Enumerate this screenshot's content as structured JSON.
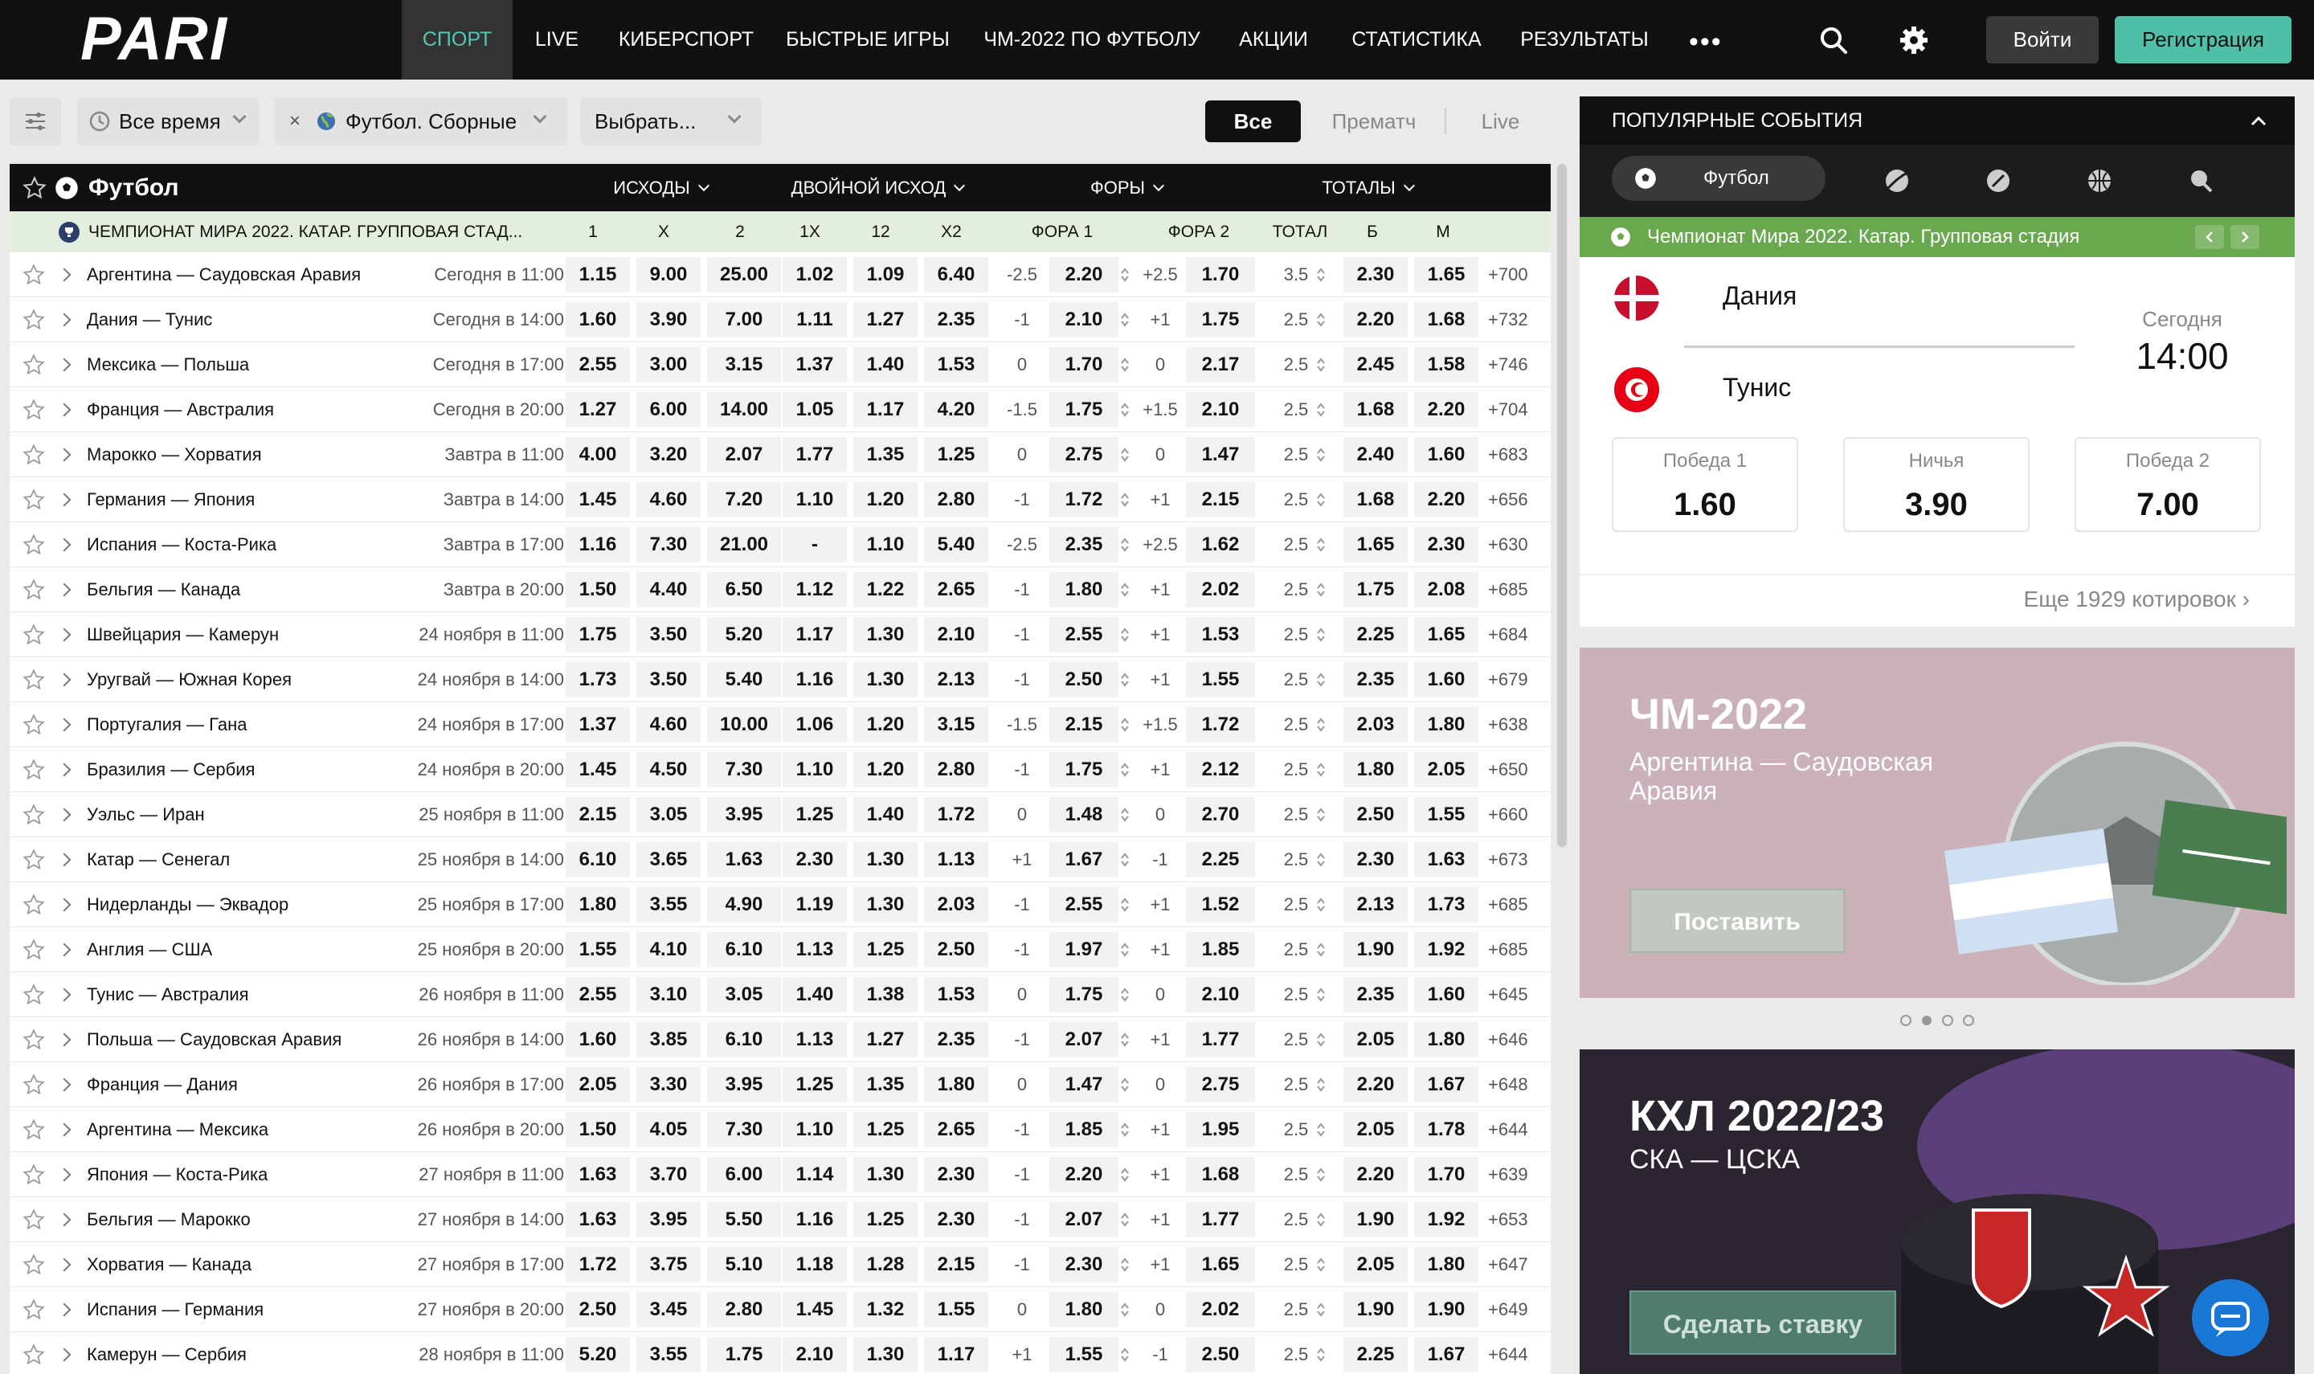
{
  "header": {
    "logo": "PARI",
    "nav": [
      "СПОРТ",
      "LIVE",
      "КИБЕРСПОРТ",
      "БЫСТРЫЕ ИГРЫ",
      "ЧМ-2022 ПО ФУТБОЛУ",
      "АКЦИИ",
      "СТАТИСТИКА",
      "РЕЗУЛЬТАТЫ"
    ],
    "more": "•••",
    "login": "Войти",
    "register": "Регистрация",
    "accent": "#54c7b6"
  },
  "filters": {
    "time": "Все время",
    "category": "Футбол. Сборные",
    "select": "Выбрать...",
    "seg_all": "Все",
    "seg_pre": "Прематч",
    "seg_live": "Live"
  },
  "table": {
    "sport": "Футбол",
    "groups": [
      "ИСХОДЫ",
      "ДВОЙНОЙ ИСХОД",
      "ФОРЫ",
      "ТОТАЛЫ"
    ],
    "league": "ЧЕМПИОНАТ МИРА 2022. КАТАР. ГРУППОВАЯ СТАД...",
    "cols": [
      "1",
      "X",
      "2",
      "1X",
      "12",
      "X2",
      "ФОРА 1",
      "ФОРА 2",
      "ТОТАЛ",
      "Б",
      "М"
    ],
    "rows": [
      [
        "Аргентина — Саудовская Аравия",
        "Сегодня в 11:00",
        "1.15",
        "9.00",
        "25.00",
        "1.02",
        "1.09",
        "6.40",
        "-2.5",
        "2.20",
        "+2.5",
        "1.70",
        "3.5",
        "2.30",
        "1.65",
        "+700"
      ],
      [
        "Дания — Тунис",
        "Сегодня в 14:00",
        "1.60",
        "3.90",
        "7.00",
        "1.11",
        "1.27",
        "2.35",
        "-1",
        "2.10",
        "+1",
        "1.75",
        "2.5",
        "2.20",
        "1.68",
        "+732"
      ],
      [
        "Мексика — Польша",
        "Сегодня в 17:00",
        "2.55",
        "3.00",
        "3.15",
        "1.37",
        "1.40",
        "1.53",
        "0",
        "1.70",
        "0",
        "2.17",
        "2.5",
        "2.45",
        "1.58",
        "+746"
      ],
      [
        "Франция — Австралия",
        "Сегодня в 20:00",
        "1.27",
        "6.00",
        "14.00",
        "1.05",
        "1.17",
        "4.20",
        "-1.5",
        "1.75",
        "+1.5",
        "2.10",
        "2.5",
        "1.68",
        "2.20",
        "+704"
      ],
      [
        "Марокко — Хорватия",
        "Завтра в 11:00",
        "4.00",
        "3.20",
        "2.07",
        "1.77",
        "1.35",
        "1.25",
        "0",
        "2.75",
        "0",
        "1.47",
        "2.5",
        "2.40",
        "1.60",
        "+683"
      ],
      [
        "Германия — Япония",
        "Завтра в 14:00",
        "1.45",
        "4.60",
        "7.20",
        "1.10",
        "1.20",
        "2.80",
        "-1",
        "1.72",
        "+1",
        "2.15",
        "2.5",
        "1.68",
        "2.20",
        "+656"
      ],
      [
        "Испания — Коста-Рика",
        "Завтра в 17:00",
        "1.16",
        "7.30",
        "21.00",
        "-",
        "1.10",
        "5.40",
        "-2.5",
        "2.35",
        "+2.5",
        "1.62",
        "2.5",
        "1.65",
        "2.30",
        "+630"
      ],
      [
        "Бельгия — Канада",
        "Завтра в 20:00",
        "1.50",
        "4.40",
        "6.50",
        "1.12",
        "1.22",
        "2.65",
        "-1",
        "1.80",
        "+1",
        "2.02",
        "2.5",
        "1.75",
        "2.08",
        "+685"
      ],
      [
        "Швейцария — Камерун",
        "24 ноября в 11:00",
        "1.75",
        "3.50",
        "5.20",
        "1.17",
        "1.30",
        "2.10",
        "-1",
        "2.55",
        "+1",
        "1.53",
        "2.5",
        "2.25",
        "1.65",
        "+684"
      ],
      [
        "Уругвай — Южная Корея",
        "24 ноября в 14:00",
        "1.73",
        "3.50",
        "5.40",
        "1.16",
        "1.30",
        "2.13",
        "-1",
        "2.50",
        "+1",
        "1.55",
        "2.5",
        "2.35",
        "1.60",
        "+679"
      ],
      [
        "Португалия — Гана",
        "24 ноября в 17:00",
        "1.37",
        "4.60",
        "10.00",
        "1.06",
        "1.20",
        "3.15",
        "-1.5",
        "2.15",
        "+1.5",
        "1.72",
        "2.5",
        "2.03",
        "1.80",
        "+638"
      ],
      [
        "Бразилия — Сербия",
        "24 ноября в 20:00",
        "1.45",
        "4.50",
        "7.30",
        "1.10",
        "1.20",
        "2.80",
        "-1",
        "1.75",
        "+1",
        "2.12",
        "2.5",
        "1.80",
        "2.05",
        "+650"
      ],
      [
        "Уэльс — Иран",
        "25 ноября в 11:00",
        "2.15",
        "3.05",
        "3.95",
        "1.25",
        "1.40",
        "1.72",
        "0",
        "1.48",
        "0",
        "2.70",
        "2.5",
        "2.50",
        "1.55",
        "+660"
      ],
      [
        "Катар — Сенегал",
        "25 ноября в 14:00",
        "6.10",
        "3.65",
        "1.63",
        "2.30",
        "1.30",
        "1.13",
        "+1",
        "1.67",
        "-1",
        "2.25",
        "2.5",
        "2.30",
        "1.63",
        "+673"
      ],
      [
        "Нидерланды — Эквадор",
        "25 ноября в 17:00",
        "1.80",
        "3.55",
        "4.90",
        "1.19",
        "1.30",
        "2.03",
        "-1",
        "2.55",
        "+1",
        "1.52",
        "2.5",
        "2.13",
        "1.73",
        "+685"
      ],
      [
        "Англия — США",
        "25 ноября в 20:00",
        "1.55",
        "4.10",
        "6.10",
        "1.13",
        "1.25",
        "2.50",
        "-1",
        "1.97",
        "+1",
        "1.85",
        "2.5",
        "1.90",
        "1.92",
        "+685"
      ],
      [
        "Тунис — Австралия",
        "26 ноября в 11:00",
        "2.55",
        "3.10",
        "3.05",
        "1.40",
        "1.38",
        "1.53",
        "0",
        "1.75",
        "0",
        "2.10",
        "2.5",
        "2.35",
        "1.60",
        "+645"
      ],
      [
        "Польша — Саудовская Аравия",
        "26 ноября в 14:00",
        "1.60",
        "3.85",
        "6.10",
        "1.13",
        "1.27",
        "2.35",
        "-1",
        "2.07",
        "+1",
        "1.77",
        "2.5",
        "2.05",
        "1.80",
        "+646"
      ],
      [
        "Франция — Дания",
        "26 ноября в 17:00",
        "2.05",
        "3.30",
        "3.95",
        "1.25",
        "1.35",
        "1.80",
        "0",
        "1.47",
        "0",
        "2.75",
        "2.5",
        "2.20",
        "1.67",
        "+648"
      ],
      [
        "Аргентина — Мексика",
        "26 ноября в 20:00",
        "1.50",
        "4.05",
        "7.30",
        "1.10",
        "1.25",
        "2.65",
        "-1",
        "1.85",
        "+1",
        "1.95",
        "2.5",
        "2.05",
        "1.78",
        "+644"
      ],
      [
        "Япония — Коста-Рика",
        "27 ноября в 11:00",
        "1.63",
        "3.70",
        "6.00",
        "1.14",
        "1.30",
        "2.30",
        "-1",
        "2.20",
        "+1",
        "1.68",
        "2.5",
        "2.20",
        "1.70",
        "+639"
      ],
      [
        "Бельгия — Марокко",
        "27 ноября в 14:00",
        "1.63",
        "3.95",
        "5.50",
        "1.16",
        "1.25",
        "2.30",
        "-1",
        "2.07",
        "+1",
        "1.77",
        "2.5",
        "1.90",
        "1.92",
        "+653"
      ],
      [
        "Хорватия — Канада",
        "27 ноября в 17:00",
        "1.72",
        "3.75",
        "5.10",
        "1.18",
        "1.28",
        "2.15",
        "-1",
        "2.30",
        "+1",
        "1.65",
        "2.5",
        "2.05",
        "1.80",
        "+647"
      ],
      [
        "Испания — Германия",
        "27 ноября в 20:00",
        "2.50",
        "3.45",
        "2.80",
        "1.45",
        "1.32",
        "1.55",
        "0",
        "1.80",
        "0",
        "2.02",
        "2.5",
        "1.90",
        "1.90",
        "+649"
      ],
      [
        "Камерун — Сербия",
        "28 ноября в 11:00",
        "5.20",
        "3.55",
        "1.75",
        "2.10",
        "1.30",
        "1.17",
        "+1",
        "1.55",
        "-1",
        "2.50",
        "2.5",
        "2.25",
        "1.67",
        "+644"
      ]
    ]
  },
  "popular": {
    "title": "ПОПУЛЯРНЫЕ СОБЫТИЯ",
    "tab_active": "Футбол",
    "competition": "Чемпионат Мира 2022. Катар. Групповая стадия",
    "team_a": "Дания",
    "team_b": "Тунис",
    "date": "Сегодня",
    "time": "14:00",
    "odds": [
      {
        "label": "Победа 1",
        "value": "1.60"
      },
      {
        "label": "Ничья",
        "value": "3.90"
      },
      {
        "label": "Победа 2",
        "value": "7.00"
      }
    ],
    "more": "Еще 1929 котировок"
  },
  "banner1": {
    "title": "ЧМ-2022",
    "subtitle": "Аргентина — Саудовская Аравия",
    "button": "Поставить"
  },
  "banner2": {
    "title": "КХЛ 2022/23",
    "subtitle": "СКА — ЦСКА",
    "button": "Сделать ставку"
  }
}
